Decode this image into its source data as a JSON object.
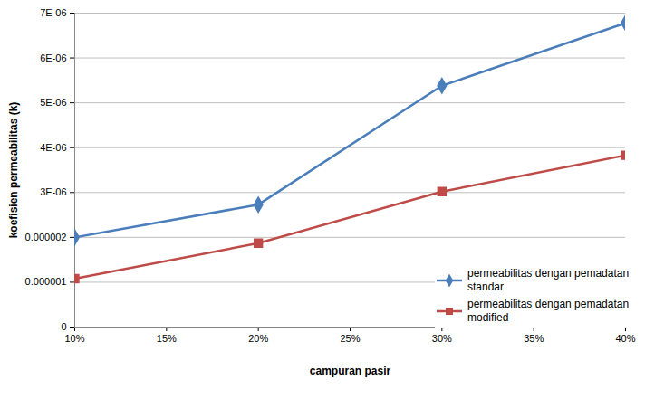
{
  "chart_data": {
    "type": "line",
    "xlabel": "campuran pasir",
    "ylabel": "koefisien permeabilitas (k)",
    "x": [
      0.1,
      0.2,
      0.3,
      0.4
    ],
    "series": [
      {
        "name": "permeabilitas dengan pemadatan standar",
        "color": "#4a7ebb",
        "marker": "diamond",
        "line_style": "solid",
        "values": [
          2e-06,
          2.73e-06,
          5.38e-06,
          6.78e-06
        ]
      },
      {
        "name": "permeabilitas dengan pemadatan modified",
        "color": "#be4b48",
        "marker": "square",
        "line_style": "solid",
        "values": [
          1.08e-06,
          1.87e-06,
          3.02e-06,
          3.83e-06
        ]
      }
    ],
    "xlim": [
      0.1,
      0.4
    ],
    "xticks": [
      {
        "value": 0.1,
        "label": "10%"
      },
      {
        "value": 0.15,
        "label": "15%"
      },
      {
        "value": 0.2,
        "label": "20%"
      },
      {
        "value": 0.25,
        "label": "25%"
      },
      {
        "value": 0.3,
        "label": "30%"
      },
      {
        "value": 0.35,
        "label": "35%"
      },
      {
        "value": 0.4,
        "label": "40%"
      }
    ],
    "ylim": [
      0,
      7e-06
    ],
    "yticks": [
      0,
      {
        "value": 1e-06,
        "label": "0.000001"
      },
      {
        "value": 2e-06,
        "label": "0.000002"
      },
      {
        "value": 3e-06,
        "label": "3E-06"
      },
      {
        "value": 4e-06,
        "label": "4E-06"
      },
      {
        "value": 5e-06,
        "label": "5E-06"
      },
      {
        "value": 6e-06,
        "label": "6E-06"
      },
      {
        "value": 7e-06,
        "label": "7E-06"
      }
    ],
    "grid": true,
    "legend": "lower right"
  }
}
